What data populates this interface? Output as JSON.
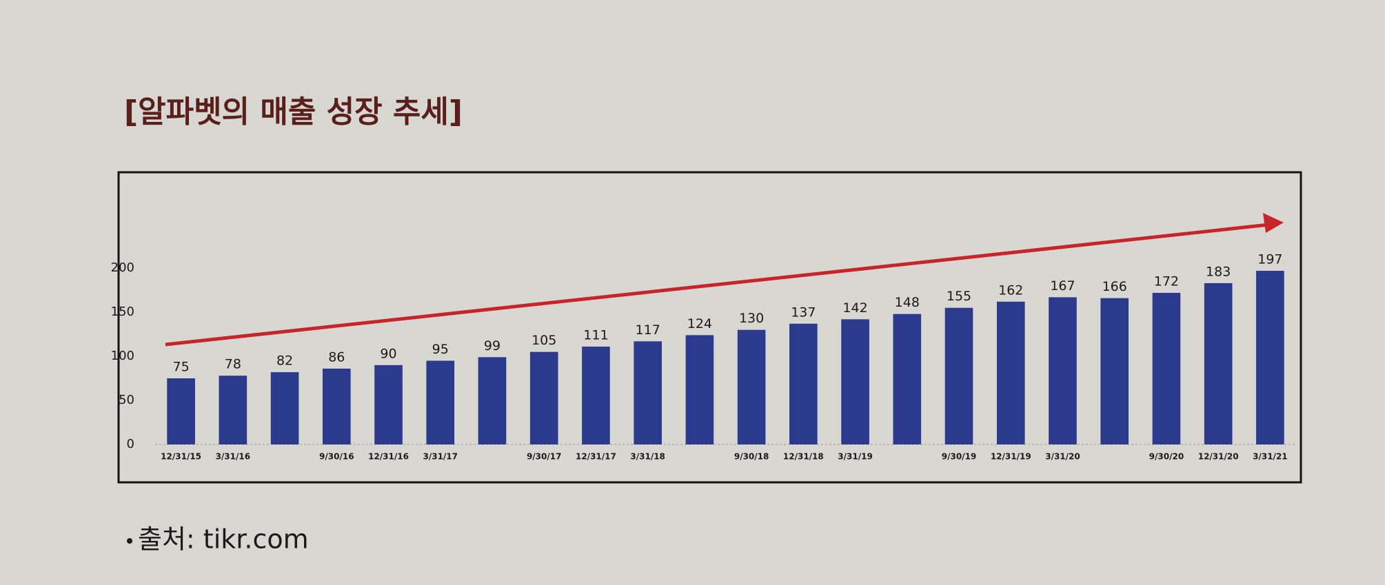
{
  "chart_data": {
    "type": "bar",
    "title": "[알파벳의 매출 성장 추세]",
    "source": "출처: tikr.com",
    "categories": [
      "12/31/15",
      "3/31/16",
      null,
      "9/30/16",
      "12/31/16",
      "3/31/17",
      null,
      "9/30/17",
      "12/31/17",
      "3/31/18",
      null,
      "9/30/18",
      "12/31/18",
      "3/31/19",
      null,
      "9/30/19",
      "12/31/19",
      "3/31/20",
      null,
      "9/30/20",
      "12/31/20",
      "3/31/21"
    ],
    "values": [
      75,
      78,
      82,
      86,
      90,
      95,
      99,
      105,
      111,
      117,
      124,
      130,
      137,
      142,
      148,
      155,
      162,
      167,
      166,
      172,
      183,
      197
    ],
    "color": "#2c3a8e",
    "ylim": [
      0,
      215
    ],
    "yticks": [
      0,
      50,
      100,
      150,
      200
    ],
    "grid": false
  }
}
